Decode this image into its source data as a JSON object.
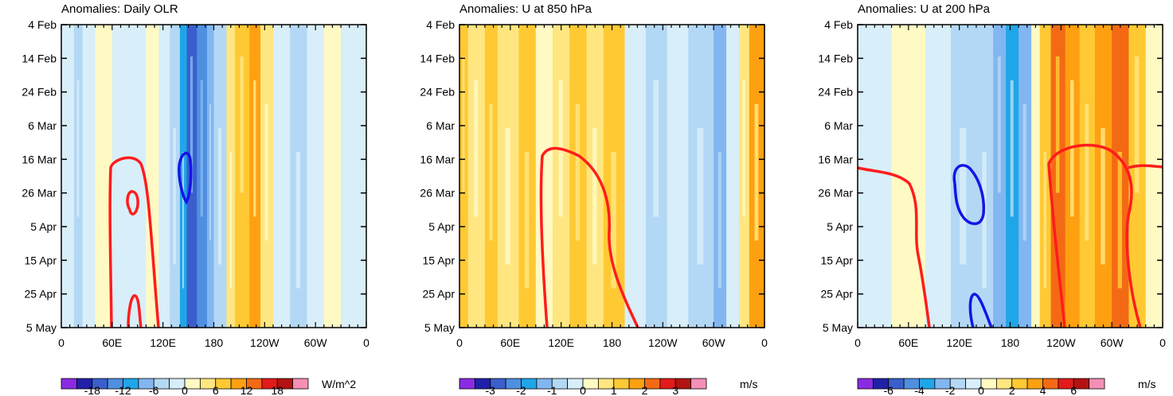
{
  "chart_data": [
    {
      "type": "heatmap",
      "title": "Anomalies: Daily OLR",
      "units": "W/m^2",
      "x_ticks": [
        "0",
        "60E",
        "120E",
        "180",
        "120W",
        "60W",
        "0"
      ],
      "x_range_deg": [
        0,
        360
      ],
      "y_ticks": [
        "4 Feb",
        "14 Feb",
        "24 Feb",
        "6 Mar",
        "16 Mar",
        "26 Mar",
        "5 Apr",
        "15 Apr",
        "25 Apr",
        "5 May"
      ],
      "colorbar_labels": [
        "-18",
        "-12",
        "-6",
        "0",
        "6",
        "12",
        "18"
      ],
      "colorbar_levels": [
        -21,
        -18,
        -15,
        -12,
        -9,
        -6,
        -3,
        0,
        3,
        6,
        9,
        12,
        15,
        18,
        21
      ],
      "colors": [
        "#8a2be2",
        "#2020a8",
        "#3a5fcd",
        "#4f8fe0",
        "#1fa6e8",
        "#82b6f0",
        "#b3d8f5",
        "#d8eef9",
        "#fff9c4",
        "#ffe680",
        "#ffc934",
        "#ffa011",
        "#f46a14",
        "#e21a1a",
        "#b31212",
        "#f58fb6"
      ],
      "bands": [
        {
          "lon0": 0,
          "lon1": 15,
          "v": -3
        },
        {
          "lon0": 15,
          "lon1": 25,
          "v": -5
        },
        {
          "lon0": 25,
          "lon1": 40,
          "v": -2
        },
        {
          "lon0": 40,
          "lon1": 60,
          "v": 1
        },
        {
          "lon0": 60,
          "lon1": 80,
          "v": -2
        },
        {
          "lon0": 80,
          "lon1": 100,
          "v": -3
        },
        {
          "lon0": 100,
          "lon1": 115,
          "v": 1
        },
        {
          "lon0": 115,
          "lon1": 128,
          "v": -2
        },
        {
          "lon0": 128,
          "lon1": 140,
          "v": -5
        },
        {
          "lon0": 140,
          "lon1": 148,
          "v": -10
        },
        {
          "lon0": 148,
          "lon1": 160,
          "v": -16
        },
        {
          "lon0": 160,
          "lon1": 172,
          "v": -13
        },
        {
          "lon0": 172,
          "lon1": 180,
          "v": -8
        },
        {
          "lon0": 180,
          "lon1": 195,
          "v": -4
        },
        {
          "lon0": 195,
          "lon1": 205,
          "v": 3
        },
        {
          "lon0": 205,
          "lon1": 222,
          "v": 7
        },
        {
          "lon0": 222,
          "lon1": 235,
          "v": 10
        },
        {
          "lon0": 235,
          "lon1": 250,
          "v": 5
        },
        {
          "lon0": 250,
          "lon1": 270,
          "v": -1
        },
        {
          "lon0": 270,
          "lon1": 290,
          "v": -4
        },
        {
          "lon0": 290,
          "lon1": 310,
          "v": -2
        },
        {
          "lon0": 310,
          "lon1": 330,
          "v": 1
        },
        {
          "lon0": 330,
          "lon1": 345,
          "v": -3
        },
        {
          "lon0": 345,
          "lon1": 360,
          "v": -2
        }
      ]
    },
    {
      "type": "heatmap",
      "title": "Anomalies: U at 850 hPa",
      "units": "m/s",
      "x_ticks": [
        "0",
        "60E",
        "120E",
        "180",
        "120W",
        "60W",
        "0"
      ],
      "x_range_deg": [
        0,
        360
      ],
      "y_ticks": [
        "4 Feb",
        "14 Feb",
        "24 Feb",
        "6 Mar",
        "16 Mar",
        "26 Mar",
        "5 Apr",
        "15 Apr",
        "25 Apr",
        "5 May"
      ],
      "colorbar_labels": [
        "-3",
        "-2",
        "-1",
        "0",
        "1",
        "2",
        "3"
      ],
      "colorbar_levels": [
        -3.5,
        -3,
        -2.5,
        -2,
        -1.5,
        -1,
        -0.5,
        0,
        0.5,
        1,
        1.5,
        2,
        2.5,
        3,
        3.5
      ],
      "colors": [
        "#8a2be2",
        "#2020a8",
        "#3a5fcd",
        "#4f8fe0",
        "#1fa6e8",
        "#82b6f0",
        "#b3d8f5",
        "#d8eef9",
        "#fff9c4",
        "#ffe680",
        "#ffc934",
        "#ffa011",
        "#f46a14",
        "#e21a1a",
        "#b31212",
        "#f58fb6"
      ],
      "bands": [
        {
          "lon0": 0,
          "lon1": 10,
          "v": 1.2
        },
        {
          "lon0": 10,
          "lon1": 30,
          "v": 0.6
        },
        {
          "lon0": 30,
          "lon1": 45,
          "v": 1.3
        },
        {
          "lon0": 45,
          "lon1": 70,
          "v": 0.6
        },
        {
          "lon0": 70,
          "lon1": 90,
          "v": 1.1
        },
        {
          "lon0": 90,
          "lon1": 110,
          "v": 0.3
        },
        {
          "lon0": 110,
          "lon1": 130,
          "v": 0.7
        },
        {
          "lon0": 130,
          "lon1": 150,
          "v": 1.0
        },
        {
          "lon0": 150,
          "lon1": 170,
          "v": 0.6
        },
        {
          "lon0": 170,
          "lon1": 195,
          "v": 1.2
        },
        {
          "lon0": 195,
          "lon1": 220,
          "v": -0.2
        },
        {
          "lon0": 220,
          "lon1": 245,
          "v": -0.7
        },
        {
          "lon0": 245,
          "lon1": 270,
          "v": -0.3
        },
        {
          "lon0": 270,
          "lon1": 300,
          "v": -0.8
        },
        {
          "lon0": 300,
          "lon1": 315,
          "v": -1.2
        },
        {
          "lon0": 315,
          "lon1": 330,
          "v": -0.4
        },
        {
          "lon0": 330,
          "lon1": 342,
          "v": 0.7
        },
        {
          "lon0": 342,
          "lon1": 360,
          "v": 1.6
        }
      ]
    },
    {
      "type": "heatmap",
      "title": "Anomalies: U at 200 hPa",
      "units": "m/s",
      "x_ticks": [
        "0",
        "60E",
        "120E",
        "180",
        "120W",
        "60W",
        "0"
      ],
      "x_range_deg": [
        0,
        360
      ],
      "y_ticks": [
        "4 Feb",
        "14 Feb",
        "24 Feb",
        "6 Mar",
        "16 Mar",
        "26 Mar",
        "5 Apr",
        "15 Apr",
        "25 Apr",
        "5 May"
      ],
      "colorbar_labels": [
        "-6",
        "-4",
        "-2",
        "0",
        "2",
        "4",
        "6"
      ],
      "colorbar_levels": [
        -7,
        -6,
        -5,
        -4,
        -3,
        -2,
        -1,
        0,
        1,
        2,
        3,
        4,
        5,
        6,
        7
      ],
      "colors": [
        "#8a2be2",
        "#2020a8",
        "#3a5fcd",
        "#4f8fe0",
        "#1fa6e8",
        "#82b6f0",
        "#b3d8f5",
        "#d8eef9",
        "#fff9c4",
        "#ffe680",
        "#ffc934",
        "#ffa011",
        "#f46a14",
        "#e21a1a",
        "#b31212",
        "#f58fb6"
      ],
      "bands": [
        {
          "lon0": 0,
          "lon1": 40,
          "v": -0.7
        },
        {
          "lon0": 40,
          "lon1": 80,
          "v": 0.4
        },
        {
          "lon0": 80,
          "lon1": 110,
          "v": -0.5
        },
        {
          "lon0": 110,
          "lon1": 140,
          "v": -1.2
        },
        {
          "lon0": 140,
          "lon1": 160,
          "v": -1.8
        },
        {
          "lon0": 160,
          "lon1": 175,
          "v": -2.6
        },
        {
          "lon0": 175,
          "lon1": 190,
          "v": -3.4
        },
        {
          "lon0": 190,
          "lon1": 205,
          "v": -2.2
        },
        {
          "lon0": 205,
          "lon1": 215,
          "v": 0.6
        },
        {
          "lon0": 215,
          "lon1": 228,
          "v": 2.5
        },
        {
          "lon0": 228,
          "lon1": 245,
          "v": 4.0
        },
        {
          "lon0": 245,
          "lon1": 262,
          "v": 3.2
        },
        {
          "lon0": 262,
          "lon1": 280,
          "v": 2.6
        },
        {
          "lon0": 280,
          "lon1": 300,
          "v": 3.6
        },
        {
          "lon0": 300,
          "lon1": 320,
          "v": 4.5
        },
        {
          "lon0": 320,
          "lon1": 340,
          "v": 2.2
        },
        {
          "lon0": 340,
          "lon1": 360,
          "v": 0.6
        }
      ]
    }
  ]
}
